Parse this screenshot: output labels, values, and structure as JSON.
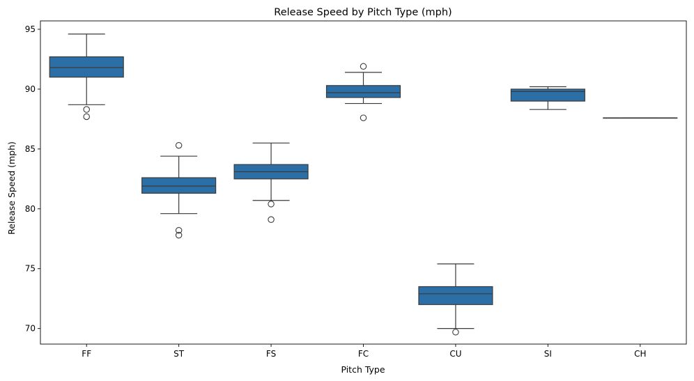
{
  "chart_data": {
    "type": "box",
    "title": "Release Speed by Pitch Type (mph)",
    "xlabel": "Pitch Type",
    "ylabel": "Release Speed (mph)",
    "ylim": [
      68.7,
      95.7
    ],
    "yticks": [
      70,
      75,
      80,
      85,
      90,
      95
    ],
    "grid": false,
    "box_color": "#2b6fa6",
    "line_color": "#3a3a3a",
    "categories": [
      "FF",
      "ST",
      "FS",
      "FC",
      "CU",
      "SI",
      "CH"
    ],
    "boxes": [
      {
        "category": "FF",
        "whisker_low": 88.7,
        "q1": 91.0,
        "median": 91.8,
        "q3": 92.7,
        "whisker_high": 94.6,
        "outliers": [
          88.3,
          87.7
        ]
      },
      {
        "category": "ST",
        "whisker_low": 79.6,
        "q1": 81.3,
        "median": 81.9,
        "q3": 82.6,
        "whisker_high": 84.4,
        "outliers": [
          85.3,
          78.2,
          77.8
        ]
      },
      {
        "category": "FS",
        "whisker_low": 80.7,
        "q1": 82.5,
        "median": 83.1,
        "q3": 83.7,
        "whisker_high": 85.5,
        "outliers": [
          80.4,
          79.1
        ]
      },
      {
        "category": "FC",
        "whisker_low": 88.8,
        "q1": 89.3,
        "median": 89.7,
        "q3": 90.3,
        "whisker_high": 91.4,
        "outliers": [
          91.9,
          87.6
        ]
      },
      {
        "category": "CU",
        "whisker_low": 70.0,
        "q1": 72.0,
        "median": 72.9,
        "q3": 73.5,
        "whisker_high": 75.4,
        "outliers": [
          69.7
        ]
      },
      {
        "category": "SI",
        "whisker_low": 88.3,
        "q1": 89.0,
        "median": 89.8,
        "q3": 90.0,
        "whisker_high": 90.2,
        "outliers": []
      },
      {
        "category": "CH",
        "whisker_low": 87.6,
        "q1": 87.6,
        "median": 87.6,
        "q3": 87.6,
        "whisker_high": 87.6,
        "outliers": []
      }
    ]
  }
}
